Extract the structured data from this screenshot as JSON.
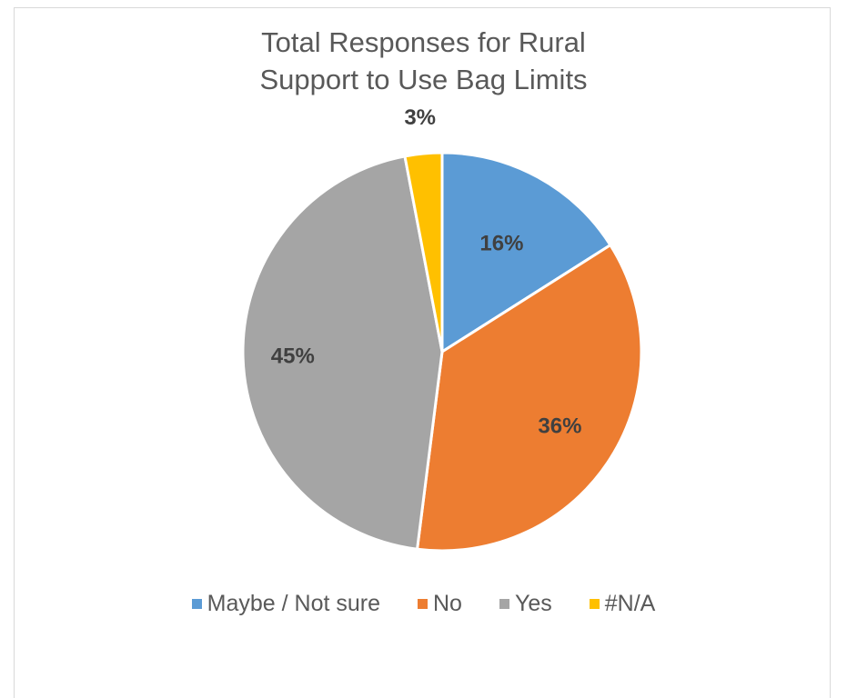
{
  "chart_data": {
    "type": "pie",
    "title_lines": [
      "Total Responses for Rural",
      "Support to Use Bag Limits"
    ],
    "slices": [
      {
        "label": "Maybe / Not sure",
        "value": 16,
        "display": "16%",
        "color": "#5b9bd5"
      },
      {
        "label": "No",
        "value": 36,
        "display": "36%",
        "color": "#ed7d31"
      },
      {
        "label": "Yes",
        "value": 45,
        "display": "45%",
        "color": "#a5a5a5"
      },
      {
        "label": "#N/A",
        "value": 3,
        "display": "3%",
        "color": "#ffc000"
      }
    ],
    "legend_position": "bottom",
    "data_labels": true
  }
}
